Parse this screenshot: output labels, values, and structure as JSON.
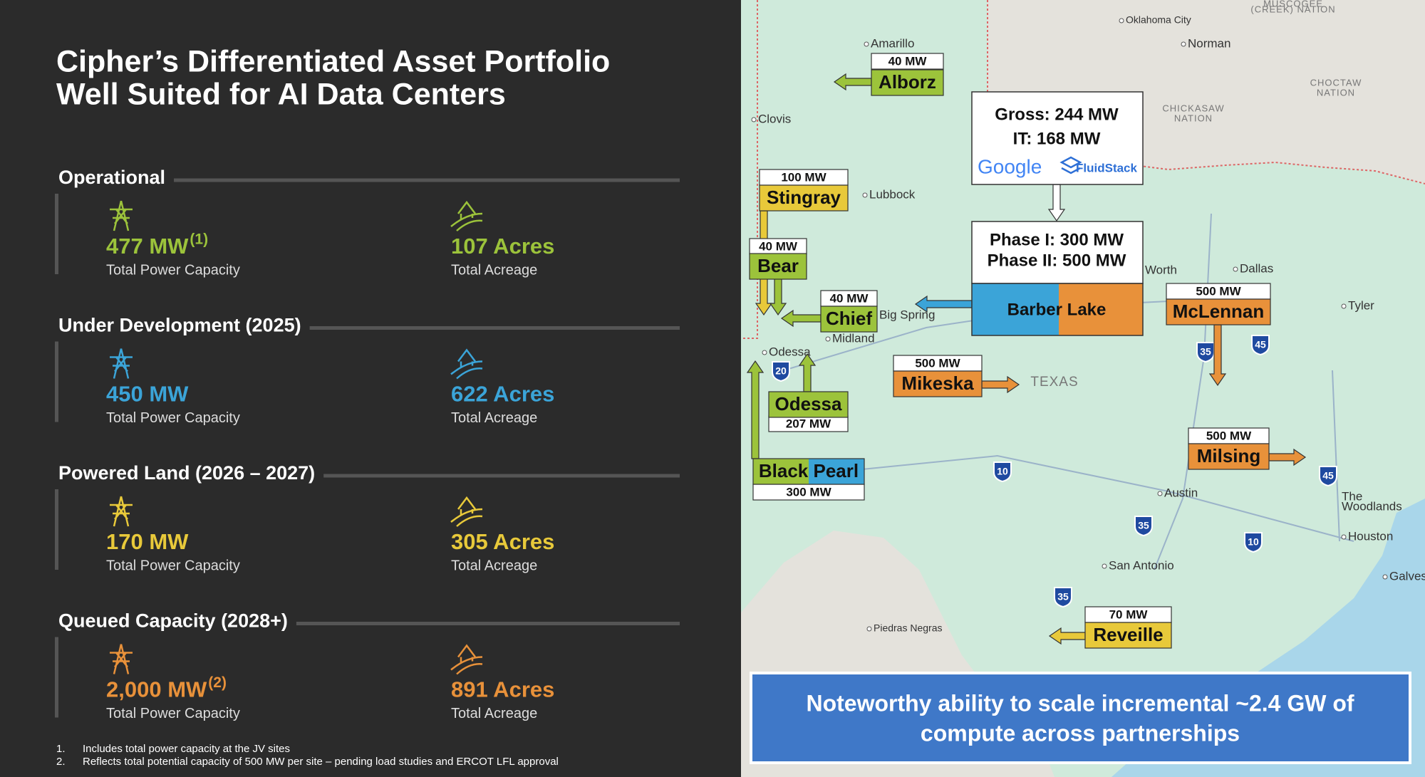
{
  "header": {
    "title_lines": [
      "Cipher’s Differentiated Asset Portfolio",
      "Well Suited for AI Data Centers"
    ]
  },
  "sections": [
    {
      "name": "Operational",
      "color": "#9cc33b",
      "power": {
        "value": "477 MW",
        "note": "(1)",
        "label": "Total Power Capacity"
      },
      "acreage": {
        "value": "107 Acres",
        "label": "Total Acreage"
      }
    },
    {
      "name": "Under Development (2025)",
      "color": "#3ba4d8",
      "power": {
        "value": "450 MW",
        "label": "Total Power Capacity"
      },
      "acreage": {
        "value": "622 Acres",
        "label": "Total Acreage"
      }
    },
    {
      "name": "Powered Land (2026 – 2027)",
      "color": "#e8c93a",
      "power": {
        "value": "170 MW",
        "label": "Total Power Capacity"
      },
      "acreage": {
        "value": "305 Acres",
        "label": "Total Acreage"
      }
    },
    {
      "name": "Queued Capacity (2028+)",
      "color": "#e8913a",
      "power": {
        "value": "2,000 MW",
        "note": "(2)",
        "label": "Total Power Capacity"
      },
      "acreage": {
        "value": "891 Acres",
        "label": "Total Acreage"
      }
    }
  ],
  "footnotes": [
    {
      "number": "1.",
      "text": "Includes total power capacity at the JV sites"
    },
    {
      "number": "2.",
      "text": "Reflects total potential capacity of 500 MW per site – pending load studies and ERCOT LFL approval"
    }
  ],
  "map": {
    "places": [
      "MUSCOGEE",
      "(CREEK) NATION",
      "Oklahoma City",
      "Norman",
      "Amarillo",
      "Clovis",
      "CHICKASAW",
      "NATION",
      "CHOCTAW",
      "NATION",
      "Lubbock",
      "Big Spring",
      "Midland",
      "Odessa",
      "Fort Worth",
      "Dallas",
      "Tyler",
      "TEXAS",
      "Austin",
      "The",
      "Woodlands",
      "Houston",
      "San Antonio",
      "Galves",
      "Piedras Negras"
    ],
    "shields": [
      "20",
      "35",
      "45",
      "10",
      "35",
      "10",
      "45",
      "35"
    ],
    "sites": [
      {
        "name": "Alborz",
        "mw": "40 MW",
        "colors": [
          "#9cc33b"
        ]
      },
      {
        "name": "Stingray",
        "mw": "100 MW",
        "colors": [
          "#e8c93a"
        ]
      },
      {
        "name": "Bear",
        "mw": "40 MW",
        "colors": [
          "#9cc33b"
        ]
      },
      {
        "name": "Chief",
        "mw": "40 MW",
        "colors": [
          "#9cc33b"
        ]
      },
      {
        "name": "Odessa",
        "mw": "207 MW",
        "colors": [
          "#9cc33b"
        ]
      },
      {
        "name": "Black Pearl",
        "mw": "300 MW",
        "colors": [
          "#9cc33b",
          "#3ba4d8"
        ]
      },
      {
        "name": "Mikeska",
        "mw": "500 MW",
        "colors": [
          "#e8913a"
        ]
      },
      {
        "name": "McLennan",
        "mw": "500 MW",
        "colors": [
          "#e8913a"
        ]
      },
      {
        "name": "Milsing",
        "mw": "500 MW",
        "colors": [
          "#e8913a"
        ]
      },
      {
        "name": "Reveille",
        "mw": "70 MW",
        "colors": [
          "#e8c93a"
        ]
      }
    ],
    "barber_lake": {
      "gross": "Gross: 244 MW",
      "it": "IT: 168 MW",
      "partners": [
        "Google",
        "FluidStack"
      ],
      "phase1": "Phase I: 300 MW",
      "phase2": "Phase II: 500 MW",
      "name": "Barber Lake",
      "colors": [
        "#3ba4d8",
        "#e8913a"
      ]
    },
    "callout": [
      "Noteworthy ability to scale incremental ~2.4 GW of",
      "compute across partnerships"
    ]
  }
}
